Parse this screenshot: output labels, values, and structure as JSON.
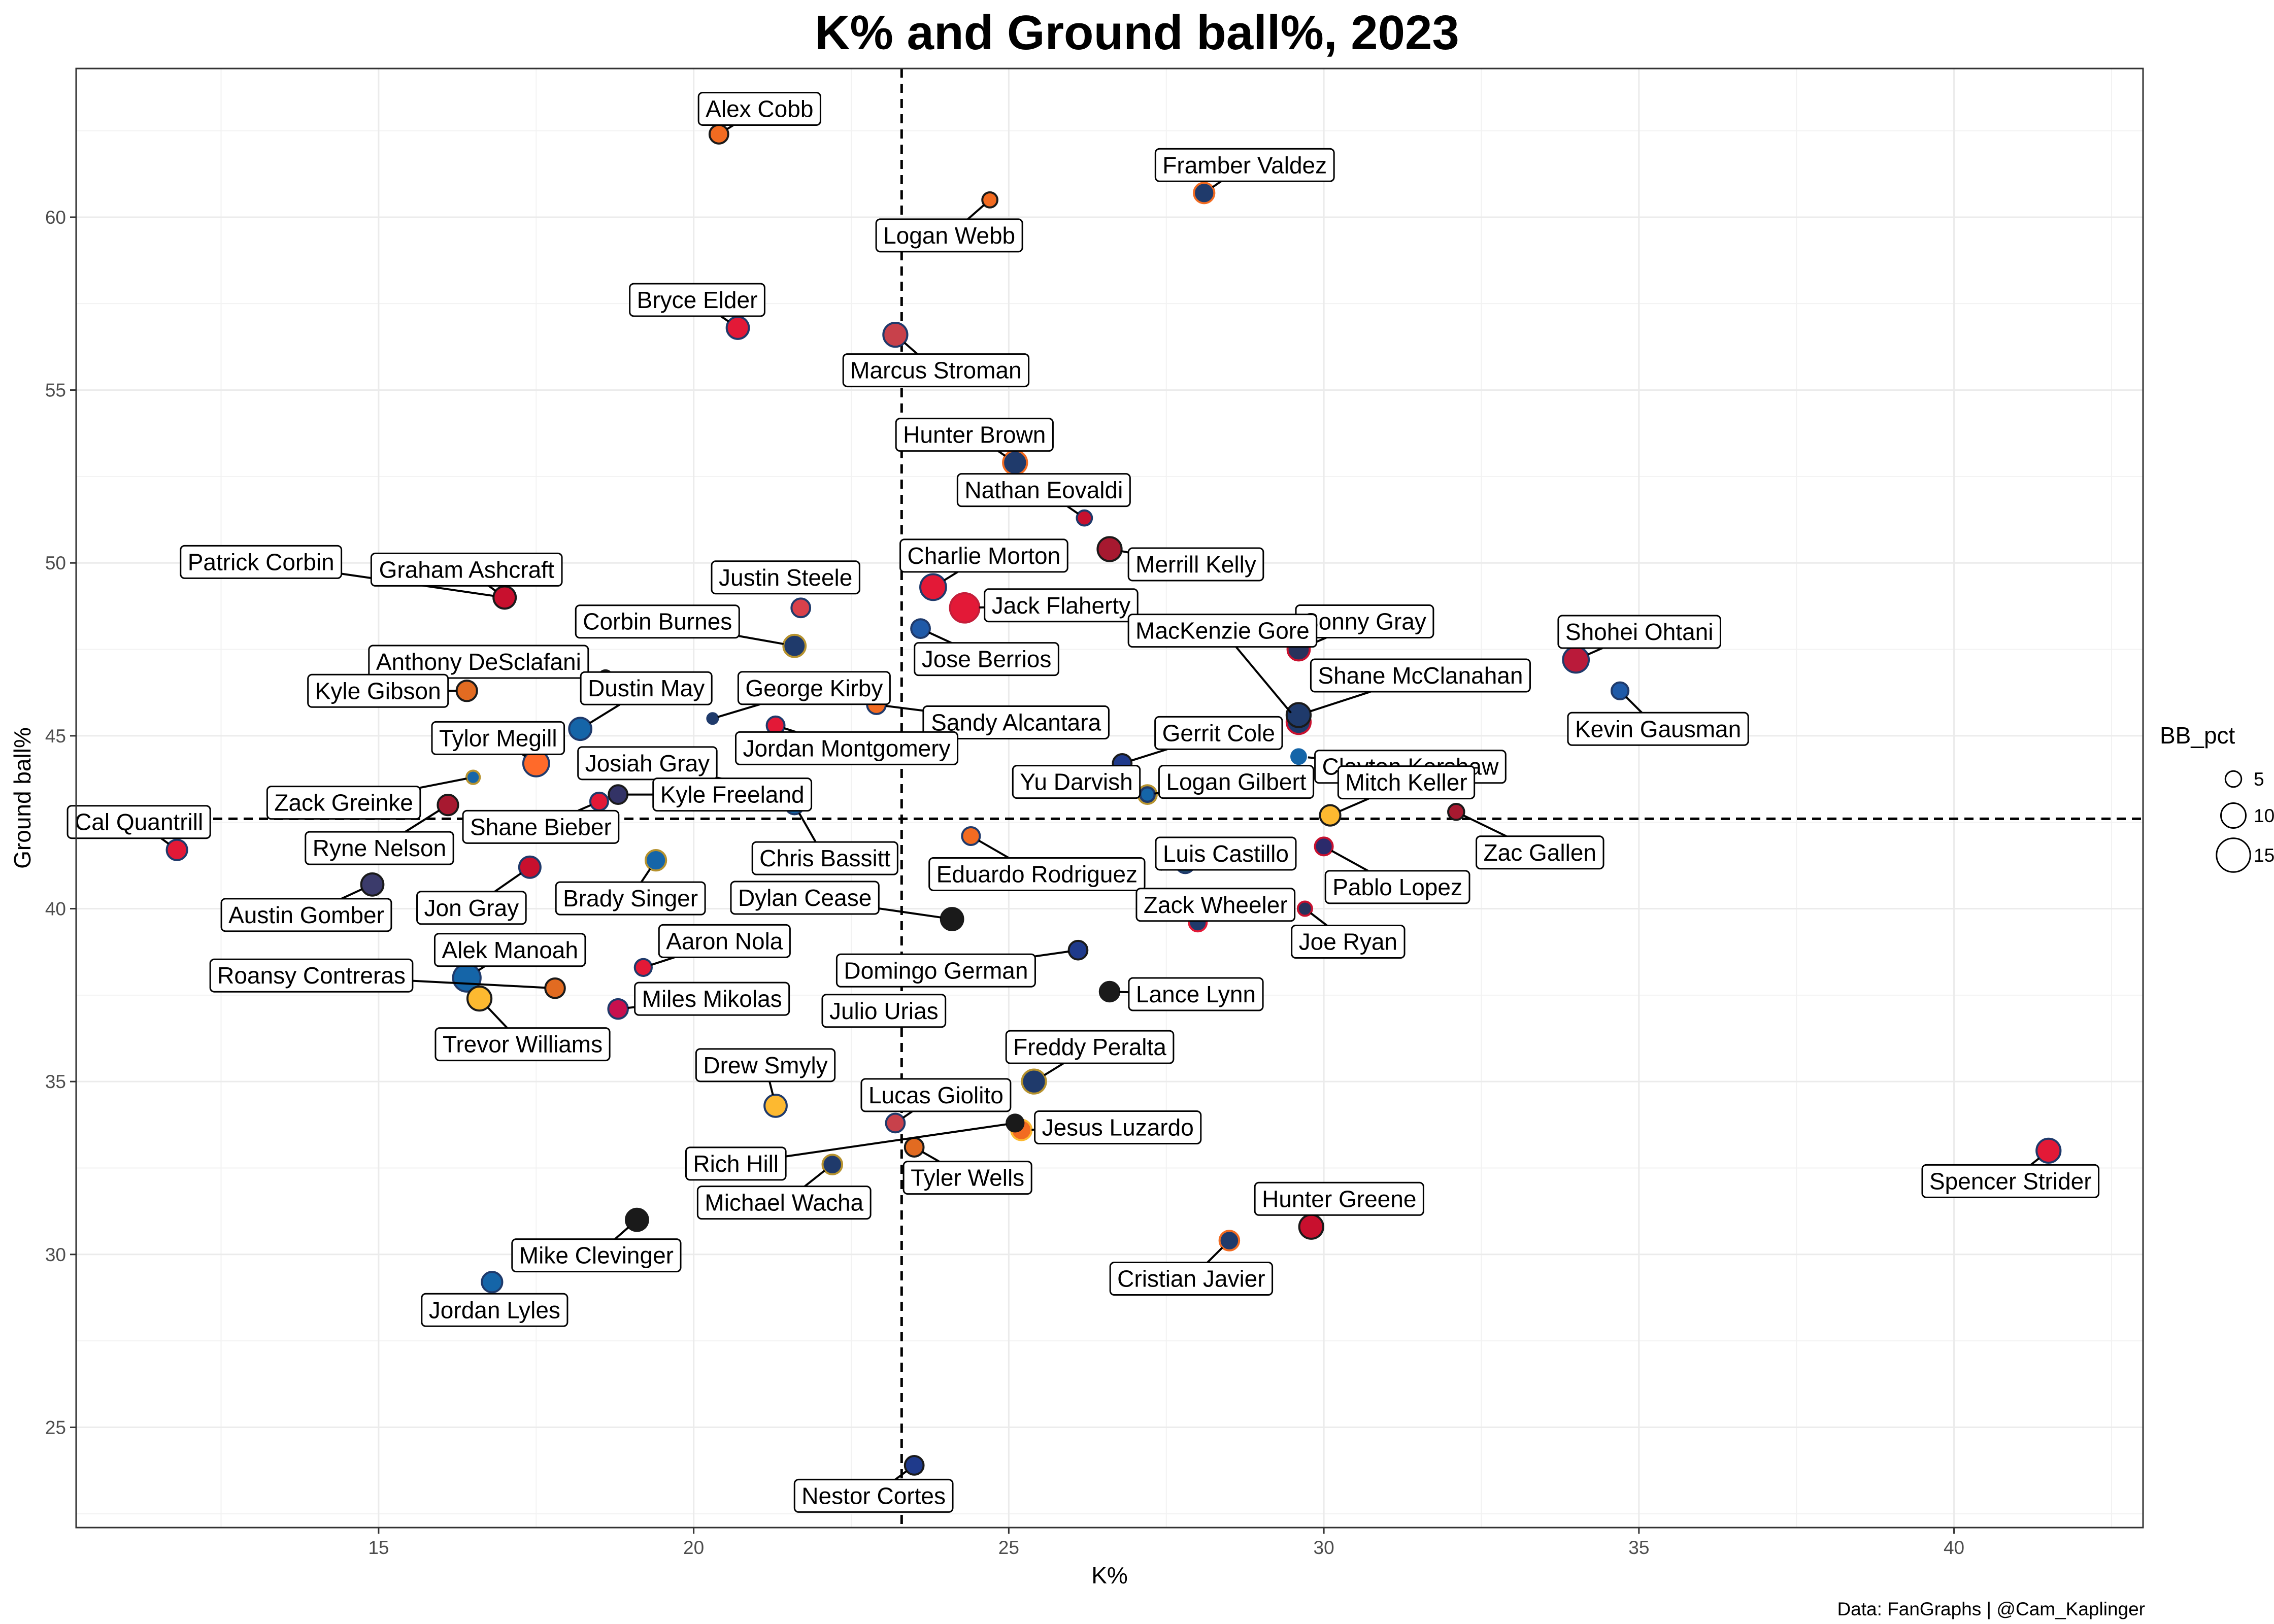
{
  "chart_data": {
    "type": "scatter",
    "title": "K% and Ground ball%, 2023",
    "xlabel": "K%",
    "ylabel": "Ground ball%",
    "caption": "Data: FanGraphs | @Cam_Kaplinger",
    "xlim": [
      10.2,
      43.0
    ],
    "ylim": [
      22.1,
      64.3
    ],
    "x_ticks": [
      15,
      20,
      25,
      30,
      35,
      40
    ],
    "y_ticks": [
      25,
      30,
      35,
      40,
      45,
      50,
      55,
      60
    ],
    "ref_lines": {
      "x": 23.3,
      "y": 42.6
    },
    "grid": true,
    "legend": {
      "title": "BB_pct",
      "position": "right",
      "entries": [
        {
          "label": "5",
          "value": 5
        },
        {
          "label": "10",
          "value": 10
        },
        {
          "label": "15",
          "value": 15
        }
      ]
    },
    "team_colors": {
      "orange": "#F26B21",
      "red": "#C8102E",
      "crimson": "#E31937",
      "navy": "#1F3A6B",
      "blue": "#1565A8",
      "darknavy": "#27325C",
      "gold": "#FDB930",
      "black": "#1A1A1A"
    },
    "points": [
      {
        "name": "Alex Cobb",
        "x": 20.4,
        "y": 62.4,
        "bb": 6.5,
        "fill": "#F26B21",
        "stroke": "#1A1A1A"
      },
      {
        "name": "Logan Webb",
        "x": 24.7,
        "y": 60.5,
        "bb": 4.5,
        "fill": "#F26B21",
        "stroke": "#1A1A1A"
      },
      {
        "name": "Framber Valdez",
        "x": 28.1,
        "y": 60.7,
        "bb": 7.5,
        "fill": "#1F3A6B",
        "stroke": "#F26B21"
      },
      {
        "name": "Bryce Elder",
        "x": 20.7,
        "y": 56.8,
        "bb": 8.5,
        "fill": "#E31937",
        "stroke": "#1F3A6B"
      },
      {
        "name": "Marcus Stroman",
        "x": 23.2,
        "y": 56.6,
        "bb": 9.5,
        "fill": "#C8414B",
        "stroke": "#1F3A6B"
      },
      {
        "name": "Hunter Brown",
        "x": 25.1,
        "y": 52.9,
        "bb": 9.5,
        "fill": "#1F3A6B",
        "stroke": "#F26B21"
      },
      {
        "name": "Nathan Eovaldi",
        "x": 26.2,
        "y": 51.3,
        "bb": 4.5,
        "fill": "#C8102E",
        "stroke": "#1F3A6B"
      },
      {
        "name": "Merrill Kelly",
        "x": 26.6,
        "y": 50.4,
        "bb": 9.5,
        "fill": "#A71930",
        "stroke": "#1A1A1A"
      },
      {
        "name": "Charlie Morton",
        "x": 23.8,
        "y": 49.3,
        "bb": 10.5,
        "fill": "#E31937",
        "stroke": "#1F3A6B"
      },
      {
        "name": "Jack Flaherty",
        "x": 24.3,
        "y": 48.7,
        "bb": 12.5,
        "fill": "#E31937",
        "stroke": "#C41E3A"
      },
      {
        "name": "Patrick Corbin",
        "x": 17.0,
        "y": 49.0,
        "bb": 8.5,
        "fill": "#C8102E",
        "stroke": "#1F3A6B"
      },
      {
        "name": "Graham Ashcraft",
        "x": 17.0,
        "y": 49.0,
        "bb": 8.5,
        "fill": "#C8102E",
        "stroke": "#1A1A1A"
      },
      {
        "name": "Justin Steele",
        "x": 21.7,
        "y": 48.7,
        "bb": 6.5,
        "fill": "#D9414B",
        "stroke": "#1F3A6B"
      },
      {
        "name": "Jose Berrios",
        "x": 23.6,
        "y": 48.1,
        "bb": 6.5,
        "fill": "#1F5AA8",
        "stroke": "#1F3A6B"
      },
      {
        "name": "Corbin Burnes",
        "x": 21.6,
        "y": 47.6,
        "bb": 8.5,
        "fill": "#1F3A6B",
        "stroke": "#B6922E"
      },
      {
        "name": "Sonny Gray",
        "x": 29.6,
        "y": 47.5,
        "bb": 8.5,
        "fill": "#27325C",
        "stroke": "#C8102E"
      },
      {
        "name": "Shohei Ohtani",
        "x": 34.0,
        "y": 47.2,
        "bb": 10.5,
        "fill": "#BA1A3A",
        "stroke": "#1F3A6B"
      },
      {
        "name": "Anthony DeSclafani",
        "x": 18.6,
        "y": 46.7,
        "bb": 3.5,
        "fill": "#F26B21",
        "stroke": "#1A1A1A"
      },
      {
        "name": "Kevin Gausman",
        "x": 34.7,
        "y": 46.3,
        "bb": 5.5,
        "fill": "#1F5AA8",
        "stroke": "#1F3A6B"
      },
      {
        "name": "Kyle Gibson",
        "x": 16.4,
        "y": 46.3,
        "bb": 7.5,
        "fill": "#E26B21",
        "stroke": "#1A1A1A"
      },
      {
        "name": "MacKenzie Gore",
        "x": 29.6,
        "y": 45.4,
        "bb": 9.5,
        "fill": "#1F3A6B",
        "stroke": "#C8102E"
      },
      {
        "name": "Shane McClanahan",
        "x": 29.6,
        "y": 45.6,
        "bb": 9.5,
        "fill": "#1F3A6B",
        "stroke": "#1A1A1A"
      },
      {
        "name": "George Kirby",
        "x": 20.3,
        "y": 45.5,
        "bb": 2.0,
        "fill": "#1F3A6B",
        "stroke": "#1F3A6B"
      },
      {
        "name": "Sandy Alcantara",
        "x": 22.9,
        "y": 45.9,
        "bb": 6.5,
        "fill": "#F26B21",
        "stroke": "#1F3A6B"
      },
      {
        "name": "Jordan Montgomery",
        "x": 21.3,
        "y": 45.3,
        "bb": 6.0,
        "fill": "#E31937",
        "stroke": "#1F3A6B"
      },
      {
        "name": "Dustin May",
        "x": 18.2,
        "y": 45.2,
        "bb": 8.5,
        "fill": "#1565A8",
        "stroke": "#1F3A6B"
      },
      {
        "name": "Tylor Megill",
        "x": 17.5,
        "y": 44.2,
        "bb": 10.5,
        "fill": "#FF6A2A",
        "stroke": "#1F3A6B"
      },
      {
        "name": "Clayton Kershaw",
        "x": 29.6,
        "y": 44.4,
        "bb": 6.5,
        "fill": "#1565A8",
        "stroke": "#FFFFFF"
      },
      {
        "name": "Gerrit Cole",
        "x": 26.8,
        "y": 44.2,
        "bb": 6.5,
        "fill": "#1F3A8B",
        "stroke": "#1A1A1A"
      },
      {
        "name": "Zack Greinke",
        "x": 16.5,
        "y": 43.8,
        "bb": 3.5,
        "fill": "#1565A8",
        "stroke": "#B6922E"
      },
      {
        "name": "Josiah Gray",
        "x": 21.4,
        "y": 43.4,
        "bb": 6.5,
        "fill": "#1F3A6B",
        "stroke": "#1A1A1A"
      },
      {
        "name": "Kyle Freeland",
        "x": 18.8,
        "y": 43.3,
        "bb": 6.5,
        "fill": "#333366",
        "stroke": "#1A1A1A"
      },
      {
        "name": "Yu Darvish",
        "x": 27.2,
        "y": 43.3,
        "bb": 6.5,
        "fill": "#1F3A6B",
        "stroke": "#B6922E"
      },
      {
        "name": "Logan Gilbert",
        "x": 27.2,
        "y": 43.3,
        "bb": 4.0,
        "fill": "#1565A8",
        "stroke": "#1F3A6B"
      },
      {
        "name": "Ryne Nelson",
        "x": 16.1,
        "y": 43.0,
        "bb": 7.5,
        "fill": "#A71930",
        "stroke": "#1A1A1A"
      },
      {
        "name": "Chris Bassitt",
        "x": 21.6,
        "y": 43.0,
        "bb": 6.5,
        "fill": "#1565A8",
        "stroke": "#1F3A6B"
      },
      {
        "name": "Shane Bieber",
        "x": 18.5,
        "y": 43.1,
        "bb": 6.0,
        "fill": "#E31937",
        "stroke": "#1F3A6B"
      },
      {
        "name": "Mitch Keller",
        "x": 30.1,
        "y": 42.7,
        "bb": 7.5,
        "fill": "#FDB930",
        "stroke": "#1A1A1A"
      },
      {
        "name": "Zac Gallen",
        "x": 32.1,
        "y": 42.8,
        "bb": 5.0,
        "fill": "#A71930",
        "stroke": "#1A1A1A"
      },
      {
        "name": "Cal Quantrill",
        "x": 11.8,
        "y": 41.7,
        "bb": 7.5,
        "fill": "#E31937",
        "stroke": "#1F3A6B"
      },
      {
        "name": "Eduardo Rodriguez",
        "x": 24.4,
        "y": 42.1,
        "bb": 6.0,
        "fill": "#F26B21",
        "stroke": "#1F3A6B"
      },
      {
        "name": "Luis Castillo",
        "x": 27.8,
        "y": 41.3,
        "bb": 6.5,
        "fill": "#1F4A6B",
        "stroke": "#1F3A6B"
      },
      {
        "name": "Pablo Lopez",
        "x": 30.0,
        "y": 41.8,
        "bb": 6.0,
        "fill": "#2B2A6B",
        "stroke": "#C8102E"
      },
      {
        "name": "Jon Gray",
        "x": 17.4,
        "y": 41.2,
        "bb": 8.0,
        "fill": "#C8102E",
        "stroke": "#1F3A6B"
      },
      {
        "name": "Brady Singer",
        "x": 19.4,
        "y": 41.4,
        "bb": 7.5,
        "fill": "#1565A8",
        "stroke": "#B6922E"
      },
      {
        "name": "Austin Gomber",
        "x": 14.9,
        "y": 40.7,
        "bb": 8.5,
        "fill": "#3B3B6B",
        "stroke": "#1A1A1A"
      },
      {
        "name": "Dylan Cease",
        "x": 24.1,
        "y": 39.7,
        "bb": 8.5,
        "fill": "#1A1A1A",
        "stroke": "#1A1A1A"
      },
      {
        "name": "Zack Wheeler",
        "x": 28.0,
        "y": 39.6,
        "bb": 6.0,
        "fill": "#1F3A6B",
        "stroke": "#E31937"
      },
      {
        "name": "Joe Ryan",
        "x": 29.7,
        "y": 40.0,
        "bb": 4.0,
        "fill": "#27325C",
        "stroke": "#C8102E"
      },
      {
        "name": "Domingo German",
        "x": 26.1,
        "y": 38.8,
        "bb": 6.5,
        "fill": "#1F3A8B",
        "stroke": "#1A1A1A"
      },
      {
        "name": "Alek Manoah",
        "x": 16.4,
        "y": 38.0,
        "bb": 11.5,
        "fill": "#1565A8",
        "stroke": "#1F3A6B"
      },
      {
        "name": "Aaron Nola",
        "x": 19.2,
        "y": 38.3,
        "bb": 5.5,
        "fill": "#E31937",
        "stroke": "#1F3A6B"
      },
      {
        "name": "Julio Urias",
        "x": 23.3,
        "y": 38.0,
        "bb": 5.0,
        "fill": "#1565A8",
        "stroke": "#1F3A6B"
      },
      {
        "name": "Roansy Contreras",
        "x": 17.8,
        "y": 37.7,
        "bb": 7.0,
        "fill": "#E26B21",
        "stroke": "#1A1A1A"
      },
      {
        "name": "Lance Lynn",
        "x": 26.6,
        "y": 37.6,
        "bb": 7.0,
        "fill": "#1A1A1A",
        "stroke": "#1A1A1A"
      },
      {
        "name": "Trevor Williams",
        "x": 16.6,
        "y": 37.4,
        "bb": 9.5,
        "fill": "#FDB930",
        "stroke": "#1A1A1A"
      },
      {
        "name": "Miles Mikolas",
        "x": 18.8,
        "y": 37.1,
        "bb": 7.0,
        "fill": "#C8104E",
        "stroke": "#1F3A6B"
      },
      {
        "name": "Freddy Peralta",
        "x": 25.4,
        "y": 35.0,
        "bb": 9.5,
        "fill": "#1F3A6B",
        "stroke": "#B6922E"
      },
      {
        "name": "Drew Smyly",
        "x": 21.3,
        "y": 34.3,
        "bb": 8.5,
        "fill": "#FDB930",
        "stroke": "#1F3A6B"
      },
      {
        "name": "Lucas Giolito",
        "x": 23.2,
        "y": 33.8,
        "bb": 6.5,
        "fill": "#C8414B",
        "stroke": "#1F3A6B"
      },
      {
        "name": "Rich Hill",
        "x": 25.1,
        "y": 33.8,
        "bb": 5.5,
        "fill": "#1A1A1A",
        "stroke": "#1A1A1A"
      },
      {
        "name": "Jesus Luzardo",
        "x": 25.2,
        "y": 33.6,
        "bb": 7.5,
        "fill": "#F26B21",
        "stroke": "#FDB930"
      },
      {
        "name": "Tyler Wells",
        "x": 23.5,
        "y": 33.1,
        "bb": 6.5,
        "fill": "#E26B21",
        "stroke": "#1A1A1A"
      },
      {
        "name": "Spencer Strider",
        "x": 41.5,
        "y": 33.0,
        "bb": 9.5,
        "fill": "#E31937",
        "stroke": "#1F3A6B"
      },
      {
        "name": "Michael Wacha",
        "x": 22.2,
        "y": 32.6,
        "bb": 7.0,
        "fill": "#1F3A6B",
        "stroke": "#B6922E"
      },
      {
        "name": "Mike Clevinger",
        "x": 19.1,
        "y": 31.0,
        "bb": 8.5,
        "fill": "#1A1A1A",
        "stroke": "#1A1A1A"
      },
      {
        "name": "Hunter Greene",
        "x": 29.8,
        "y": 30.8,
        "bb": 9.5,
        "fill": "#C8102E",
        "stroke": "#1A1A1A"
      },
      {
        "name": "Cristian Javier",
        "x": 28.5,
        "y": 30.4,
        "bb": 7.0,
        "fill": "#1F3A6B",
        "stroke": "#F26B21"
      },
      {
        "name": "Jordan Lyles",
        "x": 16.8,
        "y": 29.2,
        "bb": 7.5,
        "fill": "#1565A8",
        "stroke": "#1F3A6B"
      },
      {
        "name": "Nestor Cortes",
        "x": 23.5,
        "y": 23.9,
        "bb": 6.5,
        "fill": "#1F3A8B",
        "stroke": "#1A1A1A"
      }
    ]
  }
}
